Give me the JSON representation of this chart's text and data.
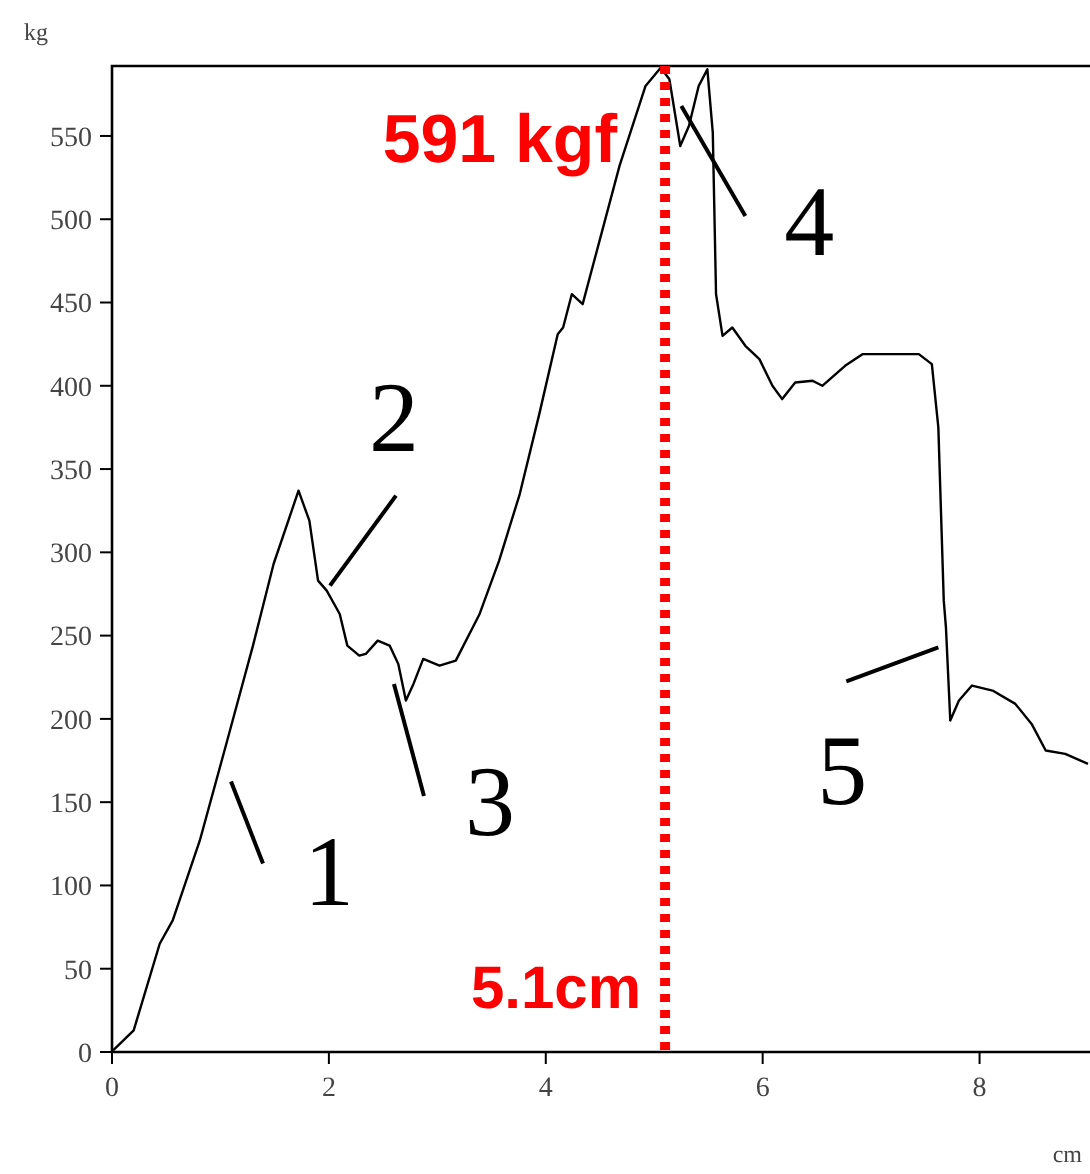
{
  "chart_data": {
    "type": "line",
    "xlabel": "cm",
    "ylabel": "kg",
    "xlim": [
      0,
      9
    ],
    "ylim": [
      0,
      592
    ],
    "xticks": [
      0,
      2,
      4,
      6,
      8
    ],
    "yticks": [
      0,
      50,
      100,
      150,
      200,
      250,
      300,
      350,
      400,
      450,
      500,
      550
    ],
    "grid": false,
    "marker": "none",
    "line_style": "solid",
    "series": [
      {
        "color": "#000000",
        "x": [
          0.01,
          0.2,
          0.44,
          0.56,
          0.81,
          1.05,
          1.3,
          1.49,
          1.72,
          1.82,
          1.9,
          1.98,
          2.1,
          2.17,
          2.28,
          2.34,
          2.45,
          2.56,
          2.64,
          2.71,
          2.78,
          2.87,
          3.02,
          3.17,
          3.39,
          3.57,
          3.76,
          3.94,
          4.11,
          4.16,
          4.24,
          4.34,
          4.43,
          4.68,
          4.92,
          5.06,
          5.14,
          5.24,
          5.32,
          5.41,
          5.49,
          5.54,
          5.57,
          5.63,
          5.72,
          5.84,
          5.97,
          6.09,
          6.18,
          6.3,
          6.46,
          6.55,
          6.76,
          6.92,
          7.44,
          7.56,
          7.62,
          7.67,
          7.69,
          7.73,
          7.81,
          7.93,
          8.12,
          8.33,
          8.48,
          8.61,
          8.79,
          9.0
        ],
        "values": [
          1,
          13,
          65,
          79,
          127,
          184,
          244,
          293,
          337,
          319,
          283,
          277,
          263,
          244,
          238,
          239,
          247,
          244,
          233,
          211,
          221,
          236,
          232,
          235,
          263,
          295,
          335,
          383,
          431,
          435,
          455,
          449,
          471,
          532,
          580,
          591,
          584,
          544,
          556,
          580,
          590,
          552,
          455,
          430,
          435,
          424,
          416,
          400,
          392,
          402,
          403,
          400,
          412,
          419,
          419,
          413,
          375,
          271,
          255,
          199,
          211,
          220,
          217,
          209,
          197,
          181,
          179,
          173
        ]
      }
    ],
    "ref_lines": [
      {
        "axis": "x",
        "value": 5.1,
        "label": "5.1cm",
        "color": "#ff0000",
        "line_style": "dotted"
      }
    ],
    "annotations": [
      {
        "text": "591 kgf",
        "x": 5.1,
        "y": 591
      },
      {
        "text": "1",
        "x": 0.95,
        "y": 160
      },
      {
        "text": "2",
        "x": 2.01,
        "y": 280
      },
      {
        "text": "3",
        "x": 2.6,
        "y": 221
      },
      {
        "text": "4",
        "x": 5.25,
        "y": 568
      },
      {
        "text": "5",
        "x": 7.62,
        "y": 243
      }
    ]
  }
}
